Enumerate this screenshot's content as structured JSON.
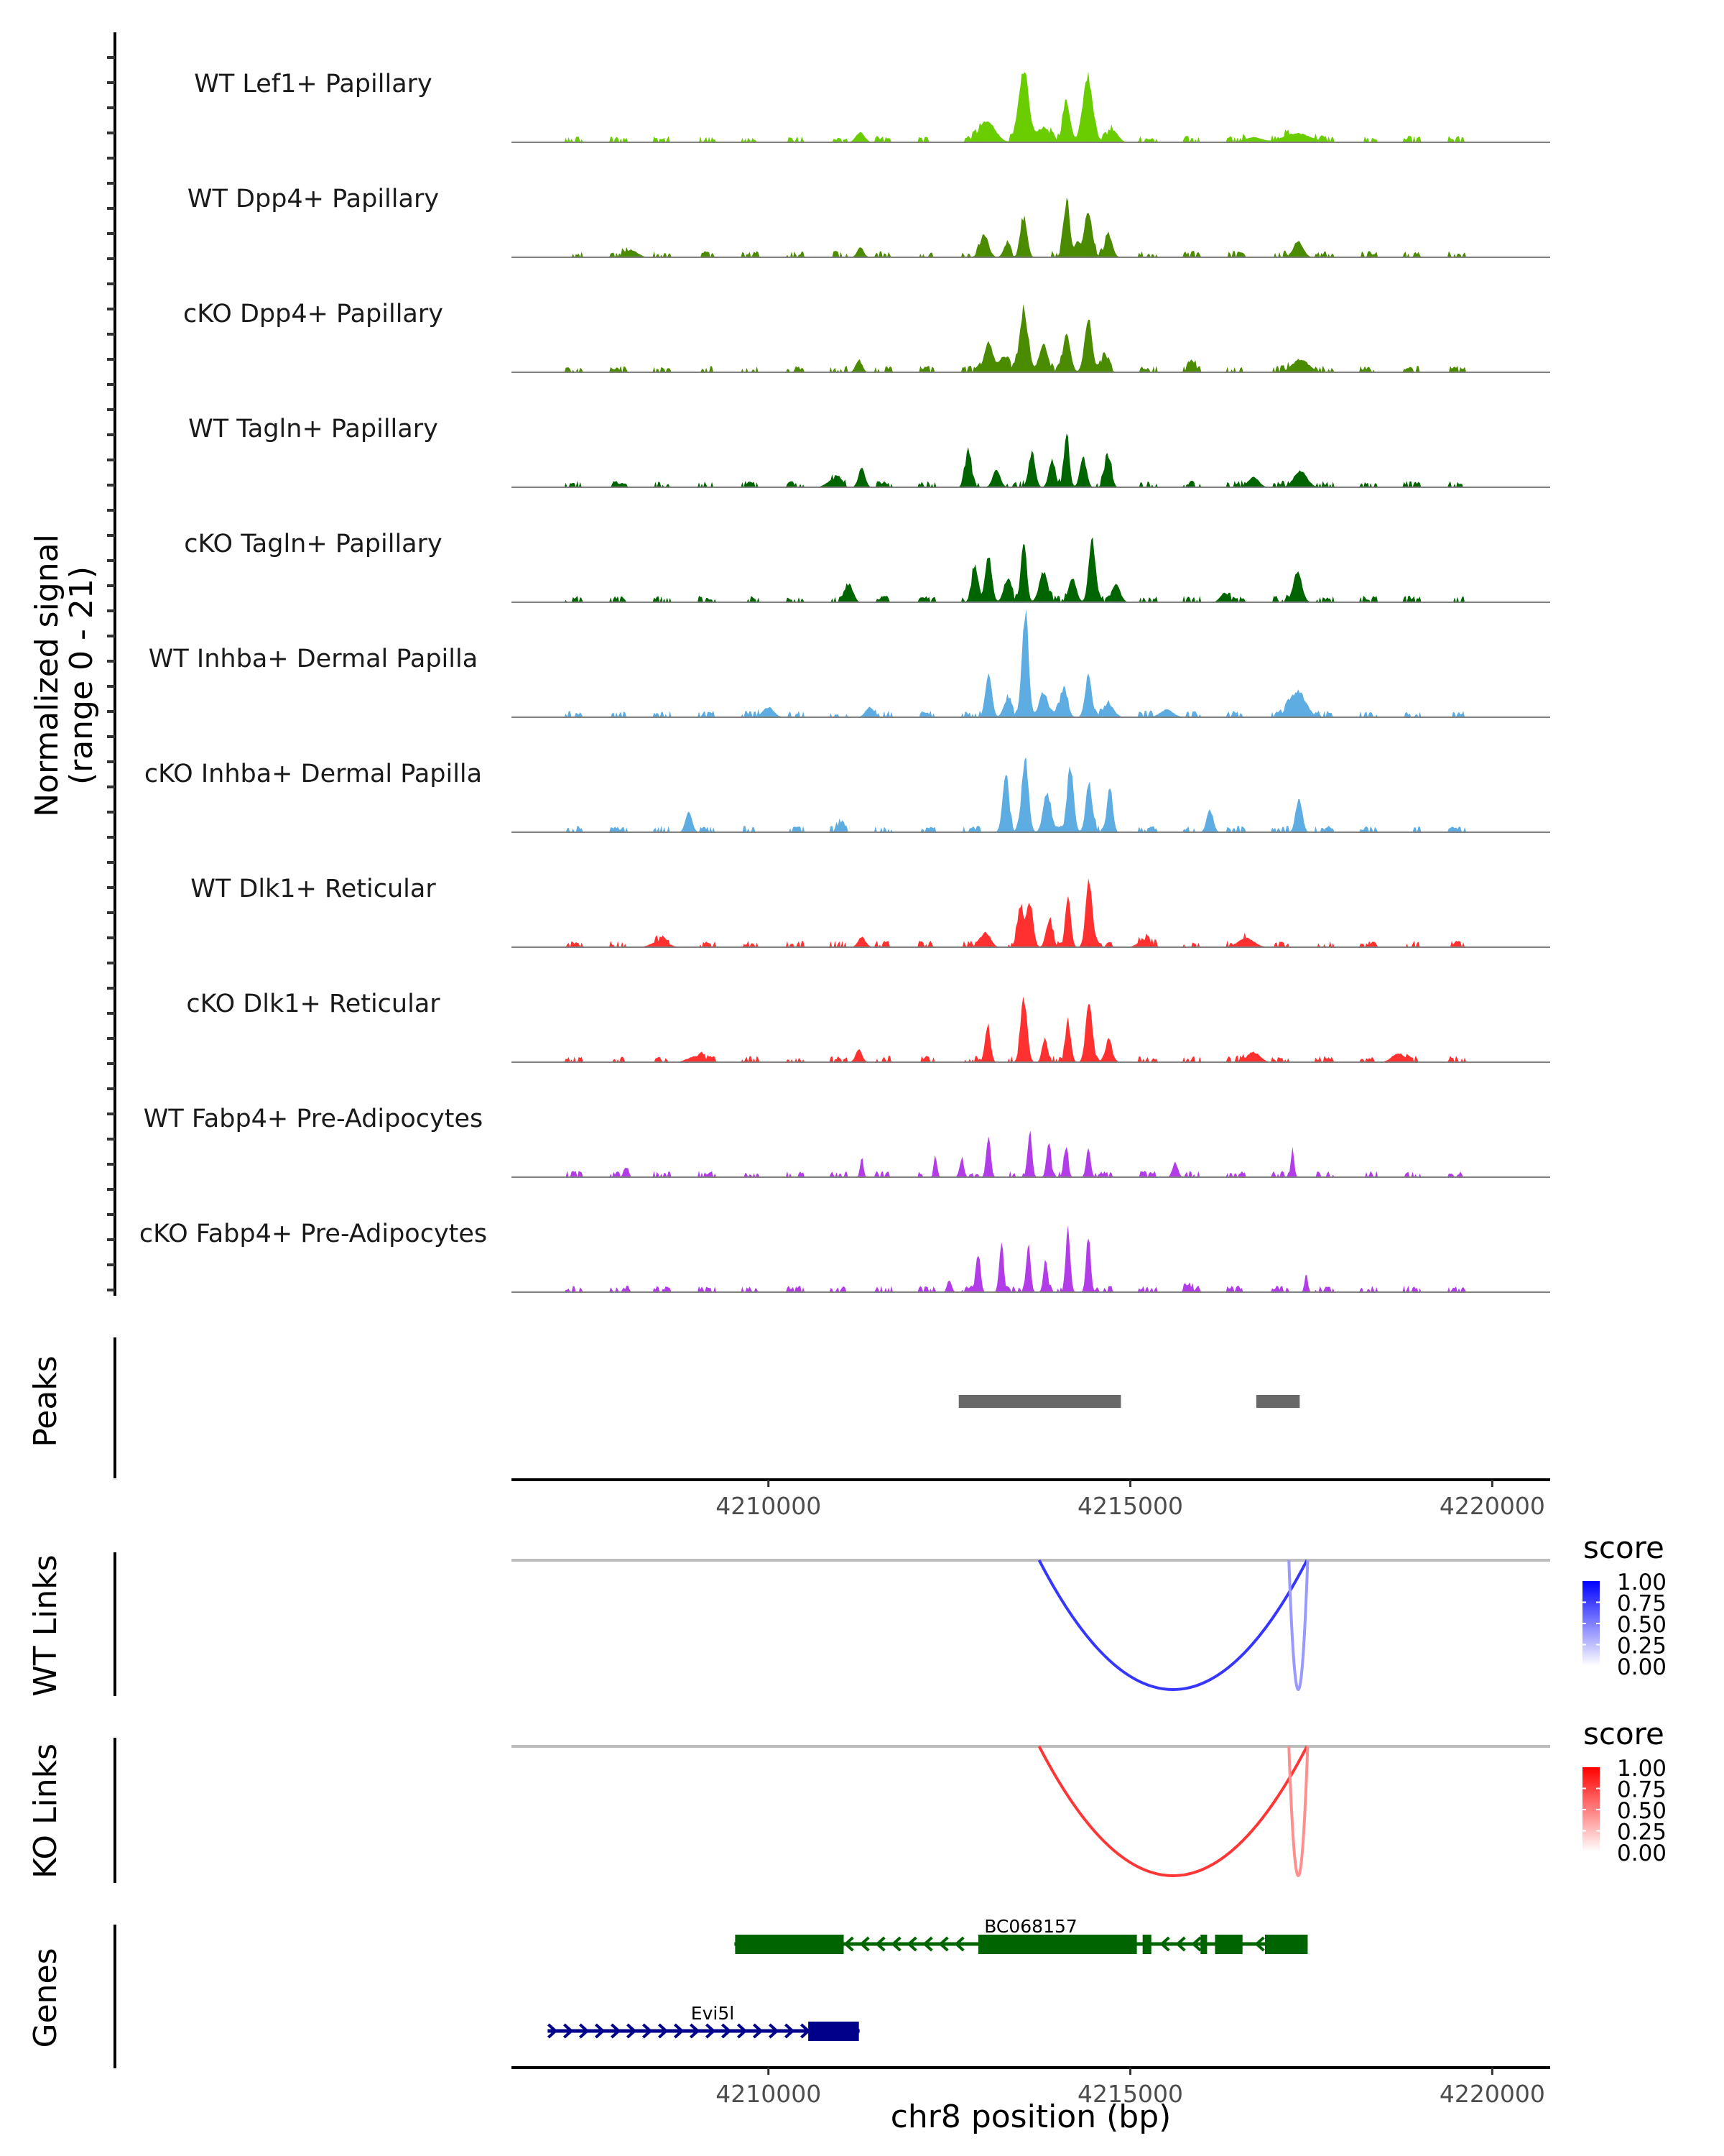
{
  "chart_data": {
    "type": "area",
    "title": "",
    "region": {
      "chrom": "chr8",
      "start": 4206450,
      "end": 4220800
    },
    "xlabel": "chr8 position (bp)",
    "xticks": [
      4210000,
      4215000,
      4220000
    ],
    "ylabel_line1": "Normalized signal",
    "ylabel_line2": "(range 0 - 21)",
    "ylim": [
      0,
      21
    ],
    "tracks": [
      {
        "label": "WT Lef1+ Papillary",
        "color": "#6acd00",
        "peaks": [
          [
            4213530,
            14,
            90
          ],
          [
            4214410,
            13.5,
            90
          ],
          [
            4214120,
            7.6,
            70
          ],
          [
            4213020,
            4.2,
            150
          ],
          [
            4211270,
            2,
            80
          ],
          [
            4217300,
            1.8,
            250
          ],
          [
            4213800,
            3,
            120
          ],
          [
            4214750,
            2.5,
            100
          ],
          [
            4216700,
            1,
            150
          ]
        ]
      },
      {
        "label": "WT Dpp4+ Papillary",
        "color": "#4b8b00",
        "peaks": [
          [
            4214120,
            10.5,
            60
          ],
          [
            4214420,
            9.5,
            70
          ],
          [
            4213530,
            8,
            60
          ],
          [
            4212980,
            4.5,
            80
          ],
          [
            4214700,
            4.5,
            70
          ],
          [
            4217320,
            3.2,
            90
          ],
          [
            4211270,
            2,
            60
          ],
          [
            4213290,
            2.5,
            60
          ],
          [
            4214270,
            3,
            50
          ],
          [
            4208100,
            1.5,
            120
          ]
        ]
      },
      {
        "label": "cKO Dpp4+ Papillary",
        "color": "#4b8b00",
        "peaks": [
          [
            4213530,
            12,
            80
          ],
          [
            4214420,
            10.5,
            70
          ],
          [
            4214120,
            7.5,
            70
          ],
          [
            4213040,
            6,
            80
          ],
          [
            4213800,
            5.5,
            80
          ],
          [
            4214650,
            3,
            70
          ],
          [
            4211250,
            2.5,
            60
          ],
          [
            4217350,
            2.6,
            150
          ],
          [
            4213250,
            3,
            90
          ],
          [
            4215850,
            2.5,
            60
          ]
        ]
      },
      {
        "label": "WT Tagln+ Papillary",
        "color": "#006400",
        "peaks": [
          [
            4214120,
            10,
            50
          ],
          [
            4212760,
            7,
            60
          ],
          [
            4213640,
            7,
            60
          ],
          [
            4214690,
            6.5,
            60
          ],
          [
            4211290,
            4,
            60
          ],
          [
            4213920,
            5.5,
            60
          ],
          [
            4214350,
            6,
            60
          ],
          [
            4213150,
            3.5,
            70
          ],
          [
            4217350,
            3.3,
            120
          ],
          [
            4216700,
            2,
            100
          ],
          [
            4210900,
            1.5,
            120
          ]
        ]
      },
      {
        "label": "cKO Tagln+ Papillary",
        "color": "#006400",
        "peaks": [
          [
            4213530,
            12.6,
            50
          ],
          [
            4214470,
            12.6,
            60
          ],
          [
            4213040,
            9.5,
            60
          ],
          [
            4212850,
            6.5,
            60
          ],
          [
            4217310,
            6,
            80
          ],
          [
            4211120,
            3.5,
            70
          ],
          [
            4213800,
            6,
            80
          ],
          [
            4214200,
            5,
            70
          ],
          [
            4214800,
            3.5,
            80
          ],
          [
            4213300,
            4.5,
            70
          ],
          [
            4216300,
            1.8,
            80
          ]
        ]
      },
      {
        "label": "WT Inhba+ Dermal Papilla",
        "color": "#5dade2",
        "peaks": [
          [
            4213550,
            21,
            60
          ],
          [
            4213040,
            8.5,
            60
          ],
          [
            4214420,
            8.5,
            60
          ],
          [
            4214080,
            5.8,
            70
          ],
          [
            4217310,
            5.2,
            150
          ],
          [
            4213800,
            5,
            80
          ],
          [
            4213300,
            3.5,
            70
          ],
          [
            4214700,
            2.5,
            100
          ],
          [
            4210000,
            2,
            100
          ],
          [
            4211400,
            2,
            80
          ],
          [
            4215500,
            1.5,
            120
          ]
        ]
      },
      {
        "label": "cKO Inhba+ Dermal Papilla",
        "color": "#5dade2",
        "peaks": [
          [
            4213550,
            14.5,
            60
          ],
          [
            4214170,
            13,
            60
          ],
          [
            4214430,
            10,
            60
          ],
          [
            4214720,
            8.5,
            50
          ],
          [
            4213280,
            11,
            60
          ],
          [
            4217330,
            7,
            60
          ],
          [
            4208900,
            4.2,
            60
          ],
          [
            4220100,
            4.2,
            60
          ],
          [
            4213850,
            8,
            70
          ],
          [
            4216100,
            4.5,
            60
          ],
          [
            4211000,
            2,
            60
          ]
        ]
      },
      {
        "label": "WT Dlk1+ Reticular",
        "color": "#ff3030",
        "peaks": [
          [
            4214430,
            13.8,
            60
          ],
          [
            4214140,
            10,
            50
          ],
          [
            4213610,
            9,
            60
          ],
          [
            4213480,
            7.5,
            60
          ],
          [
            4213880,
            5.5,
            60
          ],
          [
            4213000,
            3,
            90
          ],
          [
            4211290,
            2,
            70
          ],
          [
            4216600,
            1.8,
            150
          ],
          [
            4215200,
            1.5,
            120
          ],
          [
            4208500,
            1.2,
            150
          ]
        ]
      },
      {
        "label": "cKO Dlk1+ Reticular",
        "color": "#ff3030",
        "peaks": [
          [
            4213530,
            13,
            60
          ],
          [
            4214430,
            12.5,
            60
          ],
          [
            4214140,
            8,
            50
          ],
          [
            4213030,
            7.5,
            50
          ],
          [
            4213820,
            5,
            50
          ],
          [
            4211250,
            2.5,
            60
          ],
          [
            4214700,
            3.5,
            70
          ],
          [
            4216700,
            2,
            120
          ],
          [
            4218700,
            1.8,
            120
          ],
          [
            4209000,
            1.2,
            150
          ]
        ]
      },
      {
        "label": "WT Fabp4+ Pre-Adipocytes",
        "color": "#b23ce8",
        "peaks": [
          [
            4213610,
            9.3,
            40
          ],
          [
            4213040,
            8.3,
            40
          ],
          [
            4213870,
            7,
            40
          ],
          [
            4214110,
            6,
            40
          ],
          [
            4214420,
            6,
            40
          ],
          [
            4211290,
            4,
            30
          ],
          [
            4212310,
            4,
            30
          ],
          [
            4217240,
            6,
            30
          ],
          [
            4215620,
            3,
            50
          ],
          [
            4208050,
            2,
            30
          ],
          [
            4212670,
            3.5,
            40
          ]
        ]
      },
      {
        "label": "cKO Fabp4+ Pre-Adipocytes",
        "color": "#b23ce8",
        "peaks": [
          [
            4214140,
            13,
            40
          ],
          [
            4214420,
            11.5,
            40
          ],
          [
            4213220,
            10,
            40
          ],
          [
            4213590,
            10,
            40
          ],
          [
            4212900,
            7.5,
            40
          ],
          [
            4213830,
            6.5,
            40
          ],
          [
            4217430,
            3.5,
            30
          ],
          [
            4212500,
            2.5,
            40
          ],
          [
            4215800,
            1.5,
            60
          ],
          [
            4208050,
            1.5,
            30
          ]
        ]
      }
    ],
    "peaks_track": {
      "label": "Peaks",
      "color": "#696969",
      "regions": [
        [
          4212630,
          4214870
        ],
        [
          4216740,
          4217340
        ]
      ]
    },
    "links_tracks": [
      {
        "label": "WT Links",
        "legend_title": "score",
        "low_color": "#ffffff",
        "high_color": "#0000ff",
        "links": [
          {
            "start": 4213740,
            "end": 4217440,
            "score": 0.72
          },
          {
            "start": 4217190,
            "end": 4217450,
            "score": 0.2
          }
        ]
      },
      {
        "label": "KO Links",
        "legend_title": "score",
        "low_color": "#ffffff",
        "high_color": "#ff0000",
        "links": [
          {
            "start": 4213740,
            "end": 4217440,
            "score": 0.72
          },
          {
            "start": 4217190,
            "end": 4217450,
            "score": 0.25
          }
        ]
      }
    ],
    "legend_ticks": [
      "1.00",
      "0.75",
      "0.50",
      "0.25",
      "0.00"
    ],
    "genes_track": {
      "label": "Genes",
      "genes": [
        {
          "name": "BC068157",
          "strand": "-",
          "color": "#006400",
          "start": 4209530,
          "end": 4217450,
          "exons": [
            [
              4209540,
              4211040
            ],
            [
              4212900,
              4215090
            ],
            [
              4215170,
              4215290
            ],
            [
              4215970,
              4216060
            ],
            [
              4216170,
              4216550
            ],
            [
              4216860,
              4217450
            ]
          ]
        },
        {
          "name": "Evi5l",
          "strand": "+",
          "color": "#00008b",
          "start": 4206950,
          "end": 4211260,
          "exons": [
            [
              4210550,
              4211250
            ]
          ]
        }
      ]
    }
  }
}
